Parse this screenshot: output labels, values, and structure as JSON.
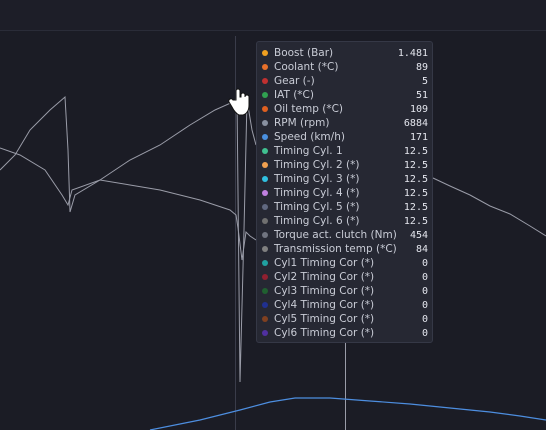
{
  "tooltip": {
    "rows": [
      {
        "label": "Boost (Bar)",
        "color": "#f0a020",
        "value": 1.481
      },
      {
        "label": "Coolant (*C)",
        "color": "#e8702a",
        "value": 89
      },
      {
        "label": "Gear (-)",
        "color": "#c03030",
        "value": 5
      },
      {
        "label": "IAT (*C)",
        "color": "#30a050",
        "value": 51
      },
      {
        "label": "Oil temp (*C)",
        "color": "#e06020",
        "value": 109
      },
      {
        "label": "RPM (rpm)",
        "color": "#8890a0",
        "value": 6884
      },
      {
        "label": "Speed (km/h)",
        "color": "#4a90e0",
        "value": 171
      },
      {
        "label": "Timing Cyl. 1",
        "color": "#40c090",
        "value": 12.5
      },
      {
        "label": "Timing Cyl. 2 (*)",
        "color": "#f0a050",
        "value": 12.5
      },
      {
        "label": "Timing Cyl. 3 (*)",
        "color": "#30c0e0",
        "value": 12.5
      },
      {
        "label": "Timing Cyl. 4 (*)",
        "color": "#c080e0",
        "value": 12.5
      },
      {
        "label": "Timing Cyl. 5 (*)",
        "color": "#606880",
        "value": 12.5
      },
      {
        "label": "Timing Cyl. 6 (*)",
        "color": "#707070",
        "value": 12.5
      },
      {
        "label": "Torque act. clutch (Nm)",
        "color": "#707480",
        "value": 454
      },
      {
        "label": "Transmission temp (*C)",
        "color": "#808080",
        "value": 84
      },
      {
        "label": "Cyl1 Timing Cor (*)",
        "color": "#20a0a0",
        "value": 0
      },
      {
        "label": "Cyl2 Timing Cor (*)",
        "color": "#902030",
        "value": 0
      },
      {
        "label": "Cyl3 Timing Cor (*)",
        "color": "#206030",
        "value": 0
      },
      {
        "label": "Cyl4 Timing Cor (*)",
        "color": "#203090",
        "value": 0
      },
      {
        "label": "Cyl5 Timing Cor (*)",
        "color": "#804020",
        "value": 0
      },
      {
        "label": "Cyl6 Timing Cor (*)",
        "color": "#5030a0",
        "value": 0
      }
    ]
  }
}
